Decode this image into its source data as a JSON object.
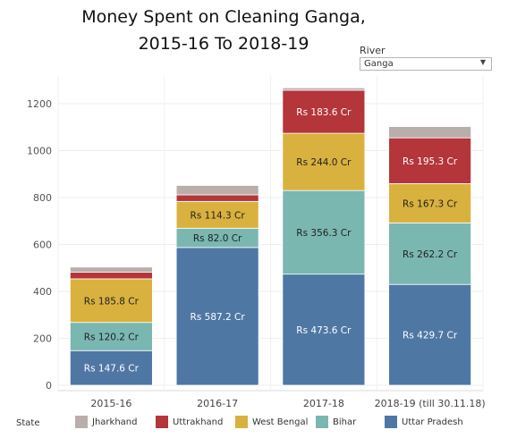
{
  "title_line1": "Money Spent on Cleaning Ganga,",
  "title_line2": "2015-16 To 2018-19",
  "filter": {
    "label": "River",
    "value": "Ganga"
  },
  "legend_title": "State",
  "colors": {
    "Jharkhand": "#b9aeaa",
    "Uttrakhand": "#b4363a",
    "West Bengal": "#d9b13e",
    "Bihar": "#7ab7b1",
    "Uttar Pradesh": "#4e77a4"
  },
  "chart_data": {
    "type": "bar",
    "stacked": true,
    "categories": [
      "2015-16",
      "2016-17",
      "2017-18",
      "2018-19 (till 30.11.18)"
    ],
    "ylim": [
      0,
      1300
    ],
    "yticks": [
      0,
      200,
      400,
      600,
      800,
      1000,
      1200
    ],
    "series": [
      {
        "name": "Uttar Pradesh",
        "values": [
          147.6,
          587.2,
          473.6,
          429.7
        ],
        "labels": [
          "Rs 147.6 Cr",
          "Rs 587.2 Cr",
          "Rs 473.6 Cr",
          "Rs 429.7 Cr"
        ]
      },
      {
        "name": "Bihar",
        "values": [
          120.2,
          82.0,
          356.3,
          262.2
        ],
        "labels": [
          "Rs 120.2 Cr",
          "Rs 82.0 Cr",
          "Rs 356.3 Cr",
          "Rs 262.2 Cr"
        ]
      },
      {
        "name": "West Bengal",
        "values": [
          185.8,
          114.3,
          244.0,
          167.3
        ],
        "labels": [
          "Rs 185.8 Cr",
          "Rs 114.3 Cr",
          "Rs 244.0 Cr",
          "Rs 167.3 Cr"
        ]
      },
      {
        "name": "Uttrakhand",
        "values": [
          28,
          28,
          183.6,
          195.3
        ],
        "labels": [
          "",
          "",
          "Rs 183.6 Cr",
          "Rs 195.3 Cr"
        ]
      },
      {
        "name": "Jharkhand",
        "values": [
          22,
          40,
          10,
          48
        ],
        "labels": [
          "",
          "",
          "",
          ""
        ]
      }
    ],
    "legend_order": [
      "Jharkhand",
      "Uttrakhand",
      "West Bengal",
      "Bihar",
      "Uttar Pradesh"
    ],
    "legend_position": "bottom",
    "grid": true
  }
}
